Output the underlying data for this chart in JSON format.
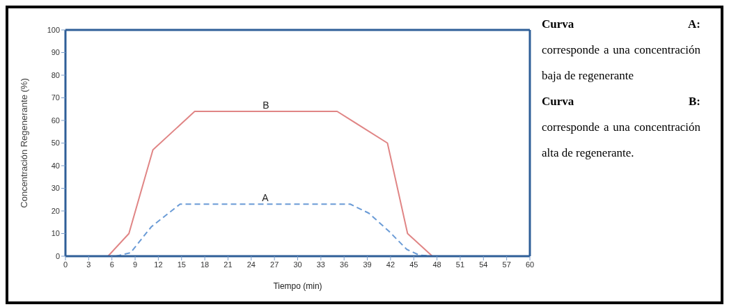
{
  "chart_data": {
    "type": "line",
    "xlabel": "Tiempo (min)",
    "ylabel": "Concentración Regenerante (%)",
    "xlim": [
      0,
      60
    ],
    "xticks": [
      0,
      3,
      6,
      9,
      12,
      15,
      18,
      21,
      24,
      27,
      30,
      33,
      36,
      39,
      42,
      45,
      48,
      51,
      54,
      57,
      60
    ],
    "ylim": [
      0,
      100
    ],
    "yticks": [
      0,
      10,
      20,
      30,
      40,
      50,
      60,
      70,
      80,
      90,
      100
    ],
    "grid": false,
    "legend": false,
    "marker": "none",
    "series": [
      {
        "name": "B",
        "color": "#e08585",
        "line_style": "solid",
        "x": [
          5.5,
          8.2,
          11.3,
          16.7,
          35.1,
          41.6,
          44.2,
          47.4
        ],
        "values": [
          0,
          10,
          47,
          64,
          64,
          50,
          10,
          0
        ]
      },
      {
        "name": "A",
        "color": "#6a9bd6",
        "line_style": "dashed",
        "x": [
          6.5,
          8.4,
          11.1,
          14.8,
          36.8,
          39.2,
          41.8,
          44.1,
          45.7,
          47.3
        ],
        "values": [
          0,
          1.5,
          13,
          23,
          23,
          19,
          11,
          3,
          0.5,
          0
        ]
      }
    ],
    "annotations": [
      "Curva A:",
      "corresponde a una concentración baja de regenerante",
      "Curva B:",
      "corresponde a una concentración alta de regenerante."
    ]
  }
}
